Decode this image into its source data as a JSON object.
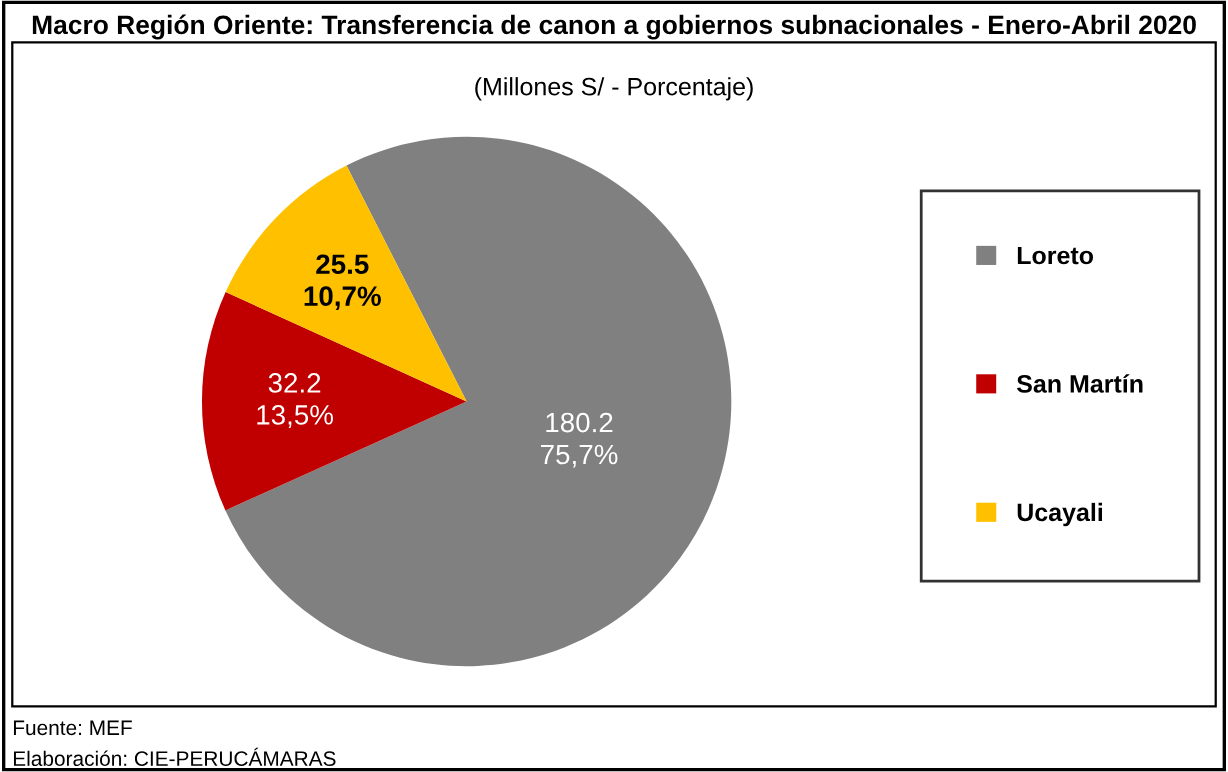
{
  "chart_data": {
    "type": "pie",
    "title": "Macro Región Oriente: Transferencia de canon a gobiernos subnacionales - Enero-Abril 2020",
    "subtitle": "(Millones S/ - Porcentaje)",
    "categories": [
      "Loreto",
      "San Martín",
      "Ucayali"
    ],
    "values": [
      180.2,
      32.2,
      25.5
    ],
    "colors": [
      "#808080",
      "#c00000",
      "#ffc000"
    ],
    "value_labels": [
      "180.2\n75,7%",
      "32.2\n13,5%",
      "25.5\n10,7%"
    ],
    "legend": "right",
    "annotations": [
      "Fuente: MEF",
      "Elaboración: CIE-PERUCÁMARAS"
    ]
  }
}
